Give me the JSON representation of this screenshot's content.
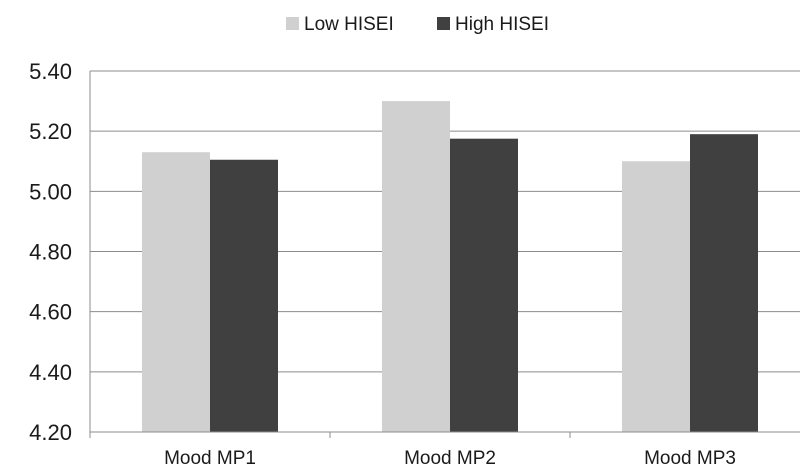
{
  "chart_data": {
    "type": "bar",
    "categories": [
      "Mood MP1",
      "Mood MP2",
      "Mood MP3"
    ],
    "series": [
      {
        "name": "Low HISEI",
        "color": "#d0d0d0",
        "values": [
          5.13,
          5.3,
          5.1
        ]
      },
      {
        "name": "High HISEI",
        "color": "#404040",
        "values": [
          5.105,
          5.175,
          5.19
        ]
      }
    ],
    "ylim": [
      4.2,
      5.4
    ],
    "yticks": [
      "4.20",
      "4.40",
      "4.60",
      "4.80",
      "5.00",
      "5.20",
      "5.40"
    ],
    "grid": true,
    "legend": "top-center",
    "title": "",
    "xlabel": "",
    "ylabel": ""
  }
}
